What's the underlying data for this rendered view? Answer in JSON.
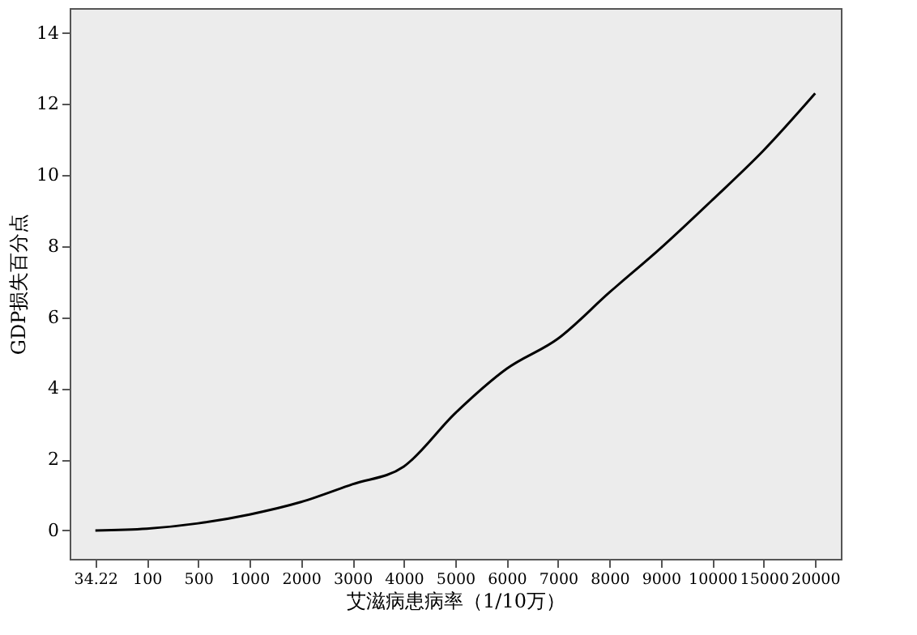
{
  "chart_data": {
    "type": "line",
    "xlabel": "艾滋病患病率（1/10万）",
    "ylabel": "GDP损失百分点",
    "categories": [
      "34.22",
      "100",
      "500",
      "1000",
      "2000",
      "3000",
      "4000",
      "5000",
      "6000",
      "7000",
      "8000",
      "9000",
      "10000",
      "15000",
      "20000"
    ],
    "series": [
      {
        "color": "#000000",
        "values": [
          0,
          0.05,
          0.2,
          0.45,
          0.8,
          1.3,
          1.8,
          3.3,
          4.55,
          5.4,
          6.7,
          7.95,
          9.3,
          10.7,
          12.3
        ]
      }
    ],
    "ylim": [
      -0.8,
      14.7
    ],
    "yticks": [
      0,
      2,
      4,
      6,
      8,
      10,
      12,
      14
    ],
    "grid": false,
    "marker": "none",
    "line_style": "solid"
  }
}
